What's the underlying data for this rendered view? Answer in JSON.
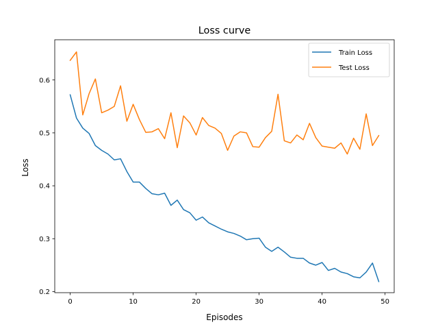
{
  "chart_data": {
    "type": "line",
    "title": "Loss curve",
    "xlabel": "Episodes",
    "ylabel": "Loss",
    "xlim": [
      -2.45,
      51.45
    ],
    "ylim": [
      0.198,
      0.676
    ],
    "x_ticks": [
      0,
      10,
      20,
      30,
      40,
      50
    ],
    "y_ticks": [
      0.2,
      0.3,
      0.4,
      0.5,
      0.6
    ],
    "grid": false,
    "legend_position": "top-right",
    "x": [
      0,
      1,
      2,
      3,
      4,
      5,
      6,
      7,
      8,
      9,
      10,
      11,
      12,
      13,
      14,
      15,
      16,
      17,
      18,
      19,
      20,
      21,
      22,
      23,
      24,
      25,
      26,
      27,
      28,
      29,
      30,
      31,
      32,
      33,
      34,
      35,
      36,
      37,
      38,
      39,
      40,
      41,
      42,
      43,
      44,
      45,
      46,
      47,
      48,
      49
    ],
    "series": [
      {
        "name": "Train Loss",
        "color": "#1f77b4",
        "values": [
          0.572,
          0.528,
          0.509,
          0.499,
          0.476,
          0.467,
          0.46,
          0.449,
          0.451,
          0.427,
          0.407,
          0.407,
          0.395,
          0.385,
          0.383,
          0.386,
          0.363,
          0.373,
          0.355,
          0.349,
          0.335,
          0.341,
          0.33,
          0.324,
          0.318,
          0.313,
          0.31,
          0.305,
          0.298,
          0.3,
          0.301,
          0.284,
          0.276,
          0.284,
          0.275,
          0.265,
          0.263,
          0.263,
          0.254,
          0.25,
          0.255,
          0.24,
          0.244,
          0.237,
          0.234,
          0.228,
          0.226,
          0.237,
          0.254,
          0.219
        ]
      },
      {
        "name": "Test Loss",
        "color": "#ff7f0e",
        "values": [
          0.637,
          0.653,
          0.534,
          0.574,
          0.602,
          0.538,
          0.543,
          0.55,
          0.589,
          0.522,
          0.554,
          0.525,
          0.501,
          0.502,
          0.508,
          0.489,
          0.538,
          0.472,
          0.532,
          0.519,
          0.496,
          0.529,
          0.514,
          0.509,
          0.499,
          0.467,
          0.494,
          0.502,
          0.5,
          0.474,
          0.473,
          0.491,
          0.503,
          0.573,
          0.485,
          0.481,
          0.496,
          0.487,
          0.518,
          0.491,
          0.475,
          0.473,
          0.471,
          0.481,
          0.46,
          0.49,
          0.469,
          0.536,
          0.476,
          0.495
        ]
      }
    ]
  }
}
